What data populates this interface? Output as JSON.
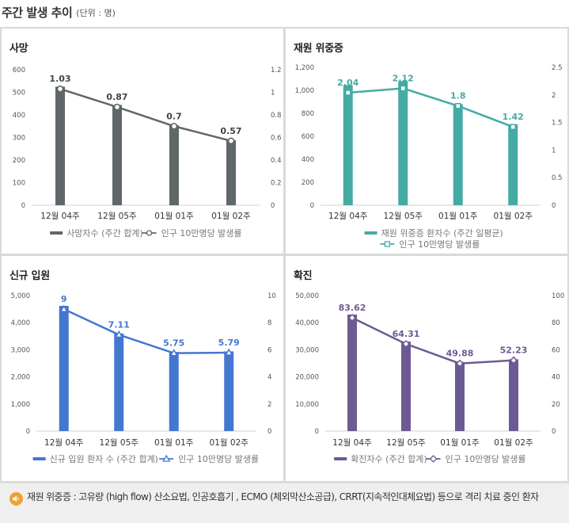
{
  "header": {
    "title": "주간 발생 추이",
    "unit": "(단위 : 명)"
  },
  "chart_data": [
    {
      "id": "deaths",
      "type": "bar",
      "title": "사망",
      "categories": [
        "12월 04주",
        "12월 05주",
        "01월 01주",
        "01월 02주"
      ],
      "series": [
        {
          "name": "사망자수 (주간 합계)",
          "kind": "bar",
          "axis": "left",
          "values": [
            525,
            444,
            354,
            288
          ]
        },
        {
          "name": "인구 10만명당 발생률",
          "kind": "line",
          "axis": "right",
          "marker": "circle",
          "values": [
            1.03,
            0.87,
            0.7,
            0.57
          ],
          "labels": [
            "1.03",
            "0.87",
            "0.7",
            "0.57"
          ]
        }
      ],
      "left_axis": {
        "min": 0,
        "max": 600,
        "ticks": [
          "0",
          "100",
          "200",
          "300",
          "400",
          "500",
          "600"
        ]
      },
      "right_axis": {
        "min": 0,
        "max": 1.2,
        "ticks": [
          "0",
          "0.2",
          "0.4",
          "0.6",
          "0.8",
          "1",
          "1.2"
        ]
      },
      "bar_color": "#5f6769",
      "line_color": "#5f6769",
      "legend": [
        "사망자수 (주간 합계)",
        "인구 10만명당 발생률"
      ]
    },
    {
      "id": "severe",
      "type": "bar",
      "title": "재원 위중증",
      "categories": [
        "12월 04주",
        "12월 05주",
        "01월 01주",
        "01월 02주"
      ],
      "series": [
        {
          "name": "재원 위중증 환자수 (주간 일평균)",
          "kind": "bar",
          "axis": "left",
          "values": [
            1045,
            1080,
            880,
            705
          ]
        },
        {
          "name": "인구 10만명당 발생률",
          "kind": "line",
          "axis": "right",
          "marker": "square",
          "values": [
            2.04,
            2.12,
            1.8,
            1.42
          ],
          "labels": [
            "2.04",
            "2.12",
            "1.8",
            "1.42"
          ]
        }
      ],
      "left_axis": {
        "min": 0,
        "max": 1200,
        "ticks": [
          "0",
          "200",
          "400",
          "600",
          "800",
          "1,000",
          "1,200"
        ]
      },
      "right_axis": {
        "min": 0,
        "max": 2.5,
        "ticks": [
          "0",
          "0.5",
          "1",
          "1.5",
          "2",
          "2.5"
        ]
      },
      "bar_color": "#45aaa4",
      "line_color": "#45aaa4",
      "legend": [
        "재원 위중증 환자수 (주간 일평균)",
        "인구 10만명당 발생률"
      ]
    },
    {
      "id": "admission",
      "type": "bar",
      "title": "신규 입원",
      "categories": [
        "12월 04주",
        "12월 05주",
        "01월 01주",
        "01월 02주"
      ],
      "series": [
        {
          "name": "신규 입원 환자 수 (주간 합계)",
          "kind": "bar",
          "axis": "left",
          "values": [
            4620,
            3600,
            2920,
            2940
          ]
        },
        {
          "name": "인구 10만명당 발생률",
          "kind": "line",
          "axis": "right",
          "marker": "triangle",
          "values": [
            9,
            7.11,
            5.75,
            5.79
          ],
          "labels": [
            "9",
            "7.11",
            "5.75",
            "5.79"
          ]
        }
      ],
      "left_axis": {
        "min": 0,
        "max": 5000,
        "ticks": [
          "0",
          "1,000",
          "2,000",
          "3,000",
          "4,000",
          "5,000"
        ]
      },
      "right_axis": {
        "min": 0,
        "max": 10,
        "ticks": [
          "0",
          "2",
          "4",
          "6",
          "8",
          "10"
        ]
      },
      "bar_color": "#4477d0",
      "line_color": "#4477d0",
      "legend": [
        "신규 입원 환자 수 (주간 합계)",
        "인구 10만명당 발생률"
      ]
    },
    {
      "id": "confirmed",
      "type": "bar",
      "title": "확진",
      "categories": [
        "12월 04주",
        "12월 05주",
        "01월 01주",
        "01월 02주"
      ],
      "series": [
        {
          "name": "확진자수 (주간 합계)",
          "kind": "bar",
          "axis": "left",
          "values": [
            43000,
            33000,
            25500,
            26500
          ]
        },
        {
          "name": "인구 10만명당 발생률",
          "kind": "line",
          "axis": "right",
          "marker": "diamond",
          "values": [
            83.62,
            64.31,
            49.88,
            52.23
          ],
          "labels": [
            "83.62",
            "64.31",
            "49.88",
            "52.23"
          ]
        }
      ],
      "left_axis": {
        "min": 0,
        "max": 50000,
        "ticks": [
          "0",
          "10,000",
          "20,000",
          "30,000",
          "40,000",
          "50,000"
        ]
      },
      "right_axis": {
        "min": 0,
        "max": 100,
        "ticks": [
          "0",
          "20",
          "40",
          "60",
          "80",
          "100"
        ]
      },
      "bar_color": "#6d5a92",
      "line_color": "#6d5a92",
      "legend": [
        "확진자수 (주간 합계)",
        "인구 10만명당 발생률"
      ]
    }
  ],
  "note": {
    "icon": "speaker-icon",
    "text": "재원 위중증 : 고유량 (high flow) 산소요법, 인공호흡기 , ECMO (체외막산소공급), CRRT(지속적인대체요법) 등으로 격리 치료 중인 환자"
  }
}
